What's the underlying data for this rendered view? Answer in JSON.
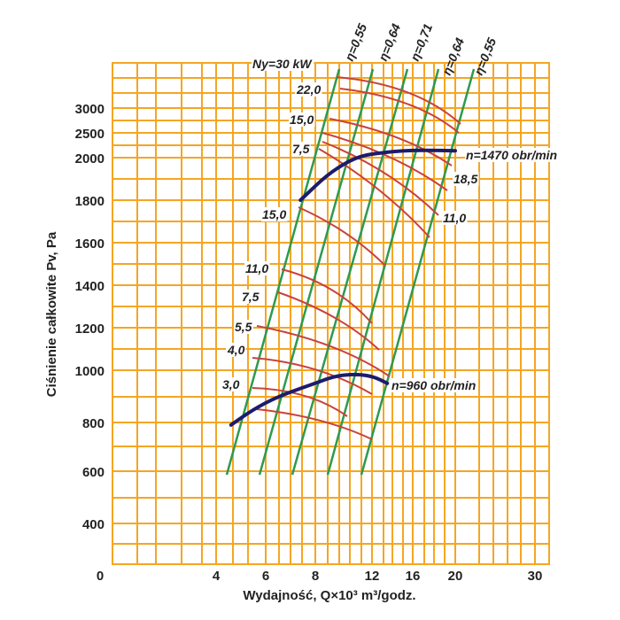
{
  "chart_data": {
    "type": "line",
    "x_axis": {
      "label": "Wydajność, Q×10³ m³/godz.",
      "ticks": [
        0,
        4,
        6,
        8,
        12,
        16,
        20,
        30
      ],
      "tick_labels": [
        "0",
        "4",
        "6",
        "8",
        "12",
        "16",
        "20",
        "30"
      ]
    },
    "y_axis": {
      "label": "Ciśnienie całkowite Pv, Pa",
      "ticks": [
        400,
        600,
        800,
        1000,
        1200,
        1400,
        1600,
        1800,
        2000,
        2500,
        3000
      ],
      "tick_labels": [
        "400",
        "600",
        "800",
        "1000",
        "1200",
        "1400",
        "1600",
        "1800",
        "2000",
        "2500",
        "3000"
      ]
    },
    "grid": true,
    "speed_curves": [
      {
        "name": "n=1470 obr/min",
        "color": "#1c1c6c",
        "points": [
          [
            7.4,
            1800
          ],
          [
            9,
            1930
          ],
          [
            11,
            2030
          ],
          [
            13,
            2100
          ],
          [
            15,
            2140
          ],
          [
            17,
            2150
          ],
          [
            20,
            2140
          ]
        ]
      },
      {
        "name": "n=960 obr/min",
        "color": "#1c1c6c",
        "points": [
          [
            4.6,
            790
          ],
          [
            5.5,
            850
          ],
          [
            6.5,
            900
          ],
          [
            8,
            950
          ],
          [
            9.5,
            980
          ],
          [
            11,
            985
          ],
          [
            12.2,
            975
          ],
          [
            13.5,
            950
          ]
        ]
      }
    ],
    "efficiency_lines": [
      {
        "name": "η=0,55",
        "color": "#2e9a4e"
      },
      {
        "name": "η=0,64",
        "color": "#2e9a4e"
      },
      {
        "name": "η=0,71",
        "color": "#2e9a4e"
      },
      {
        "name": "η=0,64",
        "color": "#2e9a4e"
      },
      {
        "name": "η=0,55",
        "color": "#2e9a4e"
      }
    ],
    "power_curves": {
      "color": "#c8433d",
      "upper_labels": [
        "Ny=30 kW",
        "22,0",
        "15,0",
        "7,5",
        "18,5",
        "11,0"
      ],
      "lower_labels": [
        "15,0",
        "11,0",
        "7,5",
        "5,5",
        "4,0",
        "3,0"
      ]
    }
  }
}
